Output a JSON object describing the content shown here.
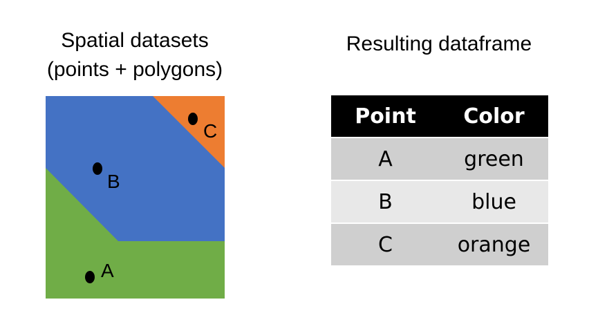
{
  "left_title": {
    "line1": "Spatial datasets",
    "line2": "(points + polygons)"
  },
  "right_title": "Resulting dataframe",
  "colors": {
    "blue": "#4472c4",
    "green": "#70ad47",
    "orange": "#ed7d31",
    "header_bg": "#000000",
    "row_odd": "#cfcfcf",
    "row_even": "#e8e8e8"
  },
  "points": [
    {
      "label": "A",
      "color": "green"
    },
    {
      "label": "B",
      "color": "blue"
    },
    {
      "label": "C",
      "color": "orange"
    }
  ],
  "table": {
    "headers": [
      "Point",
      "Color"
    ],
    "rows": [
      [
        "A",
        "green"
      ],
      [
        "B",
        "blue"
      ],
      [
        "C",
        "orange"
      ]
    ]
  }
}
